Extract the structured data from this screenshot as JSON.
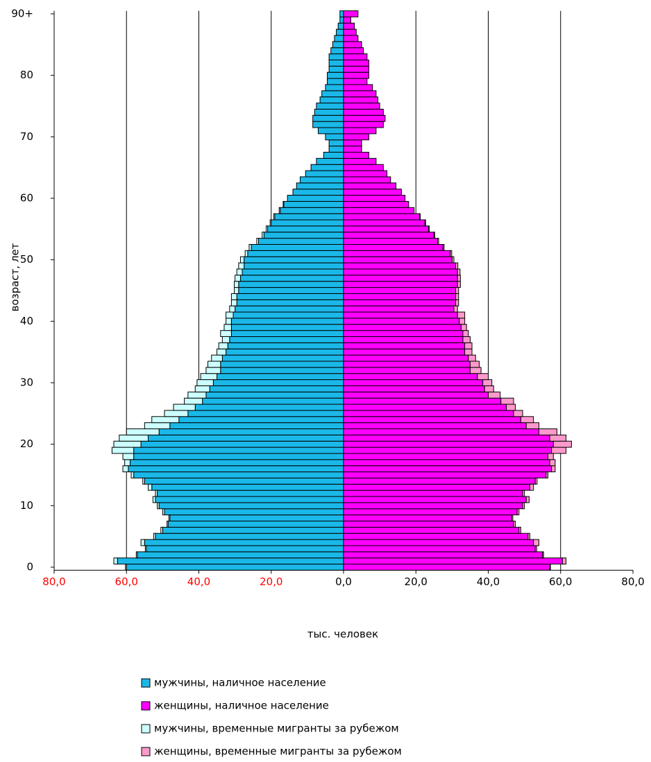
{
  "chart_data": {
    "type": "pyramid",
    "x_label": "тыс. человек",
    "y_label": "возраст, лет",
    "categories": [
      "0",
      null,
      null,
      null,
      null,
      null,
      null,
      null,
      null,
      null,
      "10",
      null,
      null,
      null,
      null,
      null,
      null,
      null,
      null,
      null,
      "20",
      null,
      null,
      null,
      null,
      null,
      null,
      null,
      null,
      null,
      "30",
      null,
      null,
      null,
      null,
      null,
      null,
      null,
      null,
      null,
      "40",
      null,
      null,
      null,
      null,
      null,
      null,
      null,
      null,
      null,
      "50",
      null,
      null,
      null,
      null,
      null,
      null,
      null,
      null,
      null,
      "60",
      null,
      null,
      null,
      null,
      null,
      null,
      null,
      null,
      null,
      "70",
      null,
      null,
      null,
      null,
      null,
      null,
      null,
      null,
      null,
      "80",
      null,
      null,
      null,
      null,
      null,
      null,
      null,
      null,
      null,
      "90+"
    ],
    "series": [
      {
        "name": "мужчины, наличное население",
        "color": "#1ab8e8",
        "side": "left",
        "values": [
          60,
          62.5,
          57,
          54.5,
          55,
          52,
          50,
          48.5,
          48,
          49.5,
          51,
          52,
          51.5,
          53,
          55,
          58,
          59.5,
          59,
          58,
          58,
          56,
          54,
          51,
          48,
          45.5,
          43,
          41,
          39,
          38,
          37,
          36,
          35,
          34,
          34,
          33.5,
          32.5,
          32,
          31.5,
          31,
          31,
          31,
          30.5,
          30,
          29.5,
          29.5,
          29,
          29,
          28.5,
          28,
          27.5,
          27.5,
          26.5,
          25.5,
          23.5,
          22,
          21,
          20,
          19,
          17.5,
          16.5,
          15.5,
          14,
          13,
          12,
          10.5,
          9,
          7.5,
          5.5,
          4,
          4,
          5,
          7,
          8.5,
          8.5,
          8,
          7.5,
          6.5,
          6,
          5,
          4.5,
          4.5,
          4,
          4,
          4,
          3.5,
          3,
          2.5,
          2,
          1.5,
          1,
          1
        ]
      },
      {
        "name": "женщины, наличное население",
        "color": "#ff00ff",
        "side": "right",
        "values": [
          57,
          60.5,
          55,
          53,
          52.5,
          51,
          48.5,
          47,
          46.5,
          48,
          49.5,
          50.5,
          49.5,
          51.5,
          53,
          56,
          57.5,
          57,
          56.5,
          57.5,
          58,
          57,
          54,
          50.5,
          49,
          47,
          45,
          43.5,
          40,
          39,
          38.5,
          37,
          35,
          35,
          34.5,
          33.5,
          33.5,
          33,
          33,
          32.5,
          32,
          31.5,
          30.5,
          31,
          31,
          31,
          31.5,
          31.5,
          31.5,
          31,
          30,
          29.5,
          27.5,
          26,
          25,
          23.5,
          22.5,
          21,
          19.5,
          18,
          17,
          16,
          14.5,
          13,
          12,
          11,
          9,
          7,
          5,
          5,
          7,
          9,
          11,
          11.5,
          11,
          10,
          9.5,
          9,
          8,
          6.5,
          7,
          7,
          7,
          6.5,
          5.5,
          5,
          4,
          3.5,
          3,
          2,
          4
        ]
      },
      {
        "name": "мужчины, временные мигранты за рубежом",
        "color": "#ccffff",
        "side": "left",
        "stack": 0,
        "values": [
          0.3,
          1,
          0.3,
          0.3,
          1,
          0.5,
          0.5,
          0.3,
          0.3,
          0.5,
          0.5,
          0.7,
          0.5,
          1,
          0.5,
          0.7,
          1.5,
          1.5,
          3,
          6,
          7.5,
          8,
          9,
          7,
          7.5,
          6.5,
          6,
          5,
          5,
          4,
          4.5,
          4.5,
          4,
          3.5,
          3,
          2.5,
          2.5,
          2,
          3,
          2,
          1.5,
          2,
          1.5,
          1.5,
          1.5,
          1.2,
          1.2,
          1.5,
          1.5,
          1.5,
          1,
          0.7,
          0.6,
          0.5,
          0.5,
          0.4,
          0.3,
          0.3,
          0.3,
          0.2,
          0,
          0,
          0,
          0,
          0,
          0,
          0,
          0,
          0,
          0,
          0,
          0,
          0,
          0,
          0,
          0,
          0,
          0,
          0,
          0,
          0,
          0,
          0,
          0,
          0,
          0,
          0,
          0,
          0,
          0,
          0
        ]
      },
      {
        "name": "женщины, временные мигранты за рубежом",
        "color": "#ff99cc",
        "side": "right",
        "stack": 1,
        "values": [
          0.2,
          1,
          0.3,
          0.4,
          1.5,
          0.5,
          0.5,
          0.5,
          0.3,
          0.5,
          0.5,
          0.8,
          0.5,
          1,
          0.5,
          0.5,
          1,
          1.5,
          1.5,
          4,
          5,
          4.5,
          5,
          3.5,
          3.5,
          2.5,
          2.5,
          3.5,
          3.3,
          2.5,
          2.5,
          3,
          3,
          2.5,
          2,
          2,
          2,
          2,
          1.5,
          1.5,
          1.5,
          2,
          1,
          0.8,
          0.8,
          0.8,
          0.8,
          0.8,
          0.7,
          0.6,
          0.5,
          0.4,
          0.3,
          0.3,
          0.2,
          0.2,
          0.2,
          0.2,
          0,
          0,
          0,
          0,
          0,
          0,
          0,
          0,
          0,
          0,
          0,
          0,
          0,
          0,
          0,
          0,
          0,
          0,
          0,
          0,
          0,
          0,
          0,
          0,
          0,
          0,
          0,
          0,
          0,
          0,
          0,
          0,
          0
        ]
      }
    ],
    "xlim": [
      -80,
      80
    ],
    "xticks": [
      {
        "value": -80,
        "label": "80,0"
      },
      {
        "value": -60,
        "label": "60,0"
      },
      {
        "value": -40,
        "label": "40,0"
      },
      {
        "value": -20,
        "label": "20,0"
      },
      {
        "value": 0,
        "label": "0,0"
      },
      {
        "value": 20,
        "label": "20,0"
      },
      {
        "value": 40,
        "label": "40,0"
      },
      {
        "value": 60,
        "label": "60,0"
      },
      {
        "value": 80,
        "label": "80,0"
      }
    ],
    "negative_tick_color": "#ff0000",
    "grid": true
  }
}
